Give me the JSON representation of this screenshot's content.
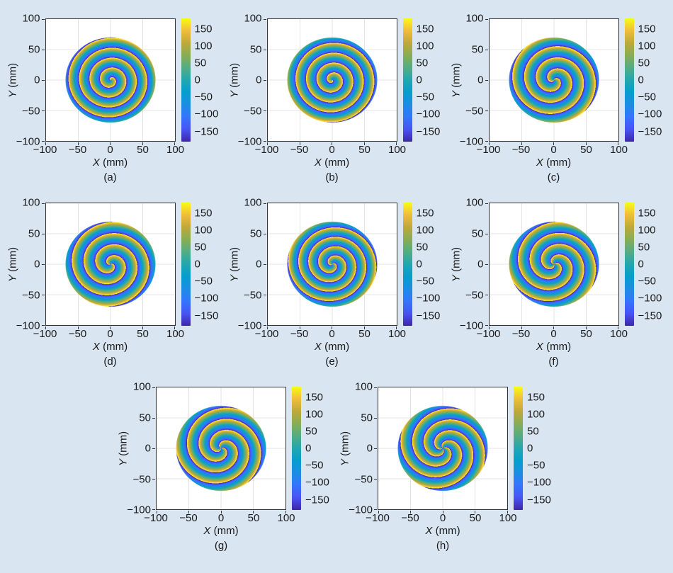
{
  "figure": {
    "background_color": "#d9e5f1",
    "plot_background": "#ffffff",
    "axis_color": "#333333",
    "grid_color": "#e3e3e3",
    "text_color": "#1a1a1a"
  },
  "axes": {
    "x_label_var": "X",
    "x_label_unit": " (mm)",
    "y_label_var": "Y",
    "y_label_unit": " (mm)",
    "x_tick_labels": [
      "−100",
      "−50",
      "0",
      "50",
      "100"
    ],
    "x_tick_values": [
      -100,
      -50,
      0,
      50,
      100
    ],
    "y_tick_labels": [
      "−100",
      "−50",
      "0",
      "50",
      "100"
    ],
    "y_tick_values": [
      -100,
      -50,
      0,
      50,
      100
    ],
    "x_range": [
      -100,
      100
    ],
    "y_range": [
      -100,
      100
    ],
    "grid_values": [
      -50,
      0,
      50
    ]
  },
  "colorbar": {
    "tick_labels": [
      "150",
      "100",
      "50",
      "0",
      "−50",
      "−100",
      "−150"
    ],
    "tick_values": [
      150,
      100,
      50,
      0,
      -50,
      -100,
      -150
    ],
    "range_deg": [
      -180,
      180
    ],
    "colormap": "parula",
    "stops": [
      "#3e26a8",
      "#4853f4",
      "#3575fe",
      "#1b8de3",
      "#069ece",
      "#21a7af",
      "#52ad84",
      "#87ad54",
      "#bda939",
      "#f0bd3b",
      "#f9fb15"
    ]
  },
  "chart_data": {
    "type": "heatmap",
    "description": "Eight spiral phase distributions (wrapped phase in degrees, parula colormap) over a circular aperture of radius 70 mm centered at the origin. Phase(r,theta) = wrap(l*theta + 360*radial_cycles*r/70 + rotation), wrapped to [-180,180] deg; white outside the aperture.",
    "phase_range_deg": [
      -180,
      180
    ],
    "aperture_radius_mm": 70,
    "panels": [
      {
        "label": "(a)",
        "topological_charge": 1,
        "radial_cycles": 4.3,
        "rotation_deg": 0
      },
      {
        "label": "(b)",
        "topological_charge": 1,
        "radial_cycles": 4.3,
        "rotation_deg": 180
      },
      {
        "label": "(c)",
        "topological_charge": 2,
        "radial_cycles": 3.8,
        "rotation_deg": 0
      },
      {
        "label": "(d)",
        "topological_charge": 2,
        "radial_cycles": 3.8,
        "rotation_deg": 90
      },
      {
        "label": "(e)",
        "topological_charge": 2,
        "radial_cycles": 4.5,
        "rotation_deg": 45
      },
      {
        "label": "(f)",
        "topological_charge": 3,
        "radial_cycles": 3.8,
        "rotation_deg": 0
      },
      {
        "label": "(g)",
        "topological_charge": 3,
        "radial_cycles": 3.8,
        "rotation_deg": 60
      },
      {
        "label": "(h)",
        "topological_charge": 4,
        "radial_cycles": 3.8,
        "rotation_deg": 0
      }
    ]
  }
}
